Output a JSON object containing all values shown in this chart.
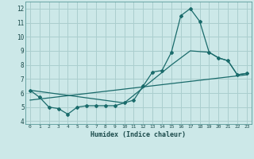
{
  "xlabel": "Humidex (Indice chaleur)",
  "xlim": [
    -0.5,
    23.5
  ],
  "ylim": [
    3.8,
    12.5
  ],
  "yticks": [
    4,
    5,
    6,
    7,
    8,
    9,
    10,
    11,
    12
  ],
  "xticks": [
    0,
    1,
    2,
    3,
    4,
    5,
    6,
    7,
    8,
    9,
    10,
    11,
    12,
    13,
    14,
    15,
    16,
    17,
    18,
    19,
    20,
    21,
    22,
    23
  ],
  "background_color": "#cce8e8",
  "grid_color": "#aacece",
  "line_color": "#1a6b6b",
  "line1_x": [
    0,
    1,
    2,
    3,
    4,
    5,
    6,
    7,
    8,
    9,
    10,
    11,
    12,
    13,
    14,
    15,
    16,
    17,
    18,
    19,
    20,
    21,
    22,
    23
  ],
  "line1_y": [
    6.2,
    5.7,
    5.0,
    4.9,
    4.5,
    5.0,
    5.1,
    5.1,
    5.1,
    5.1,
    5.3,
    5.5,
    6.5,
    7.5,
    7.6,
    8.9,
    11.5,
    12.0,
    11.1,
    8.9,
    8.5,
    8.3,
    7.3,
    7.4
  ],
  "line2_x": [
    0,
    10,
    15,
    17,
    19,
    20,
    21,
    22,
    23
  ],
  "line2_y": [
    6.2,
    5.3,
    8.0,
    9.0,
    8.9,
    8.5,
    8.3,
    7.3,
    7.4
  ],
  "line3_x": [
    0,
    23
  ],
  "line3_y": [
    5.5,
    7.3
  ]
}
